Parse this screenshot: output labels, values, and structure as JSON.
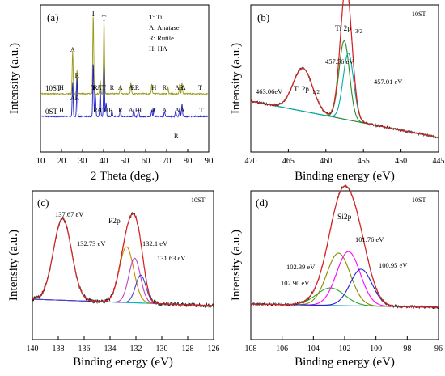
{
  "chart_data": [
    {
      "panel": "(a)",
      "type": "line",
      "xlabel": "2 Theta (deg.)",
      "ylabel": "Intensity (a.u.)",
      "xlim": [
        10,
        90
      ],
      "xticks": [
        10,
        20,
        30,
        40,
        50,
        60,
        70,
        80,
        90
      ],
      "legend": [
        "T: Ti",
        "A: Anatase",
        "R: Rutile",
        "H: HA"
      ],
      "series": [
        {
          "name": "10ST",
          "color": "#9a9a1a",
          "peaks": [
            [
              25.3,
              0.55
            ],
            [
              27.4,
              0.3
            ],
            [
              35.1,
              1.0
            ],
            [
              38.4,
              0.18
            ],
            [
              40.2,
              0.93
            ],
            [
              48.0,
              0.1
            ],
            [
              53.0,
              0.14
            ],
            [
              62.9,
              0.12
            ],
            [
              70.6,
              0.08
            ],
            [
              76.2,
              0.12
            ],
            [
              77.3,
              0.14
            ]
          ]
        },
        {
          "name": "0ST",
          "color": "#2222cc",
          "peaks": [
            [
              25.3,
              0.62
            ],
            [
              27.4,
              0.7
            ],
            [
              35.1,
              0.97
            ],
            [
              36.1,
              0.4
            ],
            [
              38.4,
              0.5
            ],
            [
              40.2,
              0.97
            ],
            [
              41.2,
              0.25
            ],
            [
              44.0,
              0.12
            ],
            [
              48.0,
              0.14
            ],
            [
              54.3,
              0.13
            ],
            [
              56.6,
              0.14
            ],
            [
              62.9,
              0.12
            ],
            [
              64.0,
              0.15
            ],
            [
              69.0,
              0.1
            ],
            [
              74.3,
              0.1
            ],
            [
              76.2,
              0.15
            ],
            [
              77.3,
              0.22
            ]
          ]
        }
      ],
      "labels_10st": [
        {
          "t": "A",
          "x": 25.3
        },
        {
          "t": "R",
          "x": 27.4
        },
        {
          "t": "T",
          "x": 35.1
        },
        {
          "t": "T",
          "x": 40.2
        },
        {
          "t": "H",
          "x": 20.0
        },
        {
          "t": "R",
          "x": 36.1
        },
        {
          "t": "T",
          "x": 38.4
        },
        {
          "t": "A",
          "x": 38.0
        },
        {
          "t": "R",
          "x": 44.0
        },
        {
          "t": "A",
          "x": 48.0
        },
        {
          "t": "R",
          "x": 54.0
        },
        {
          "t": "A",
          "x": 53.0
        },
        {
          "t": "R",
          "x": 56.0
        },
        {
          "t": "H",
          "x": 64.0
        },
        {
          "t": "R",
          "x": 69.0
        },
        {
          "t": "A",
          "x": 75.0
        },
        {
          "t": "A",
          "x": 78.0
        },
        {
          "t": "R",
          "x": 77.0
        },
        {
          "t": "T",
          "x": 86.0
        }
      ],
      "labels_0st": [
        {
          "t": "A",
          "x": 25.3
        },
        {
          "t": "R",
          "x": 27.4
        },
        {
          "t": "H",
          "x": 20.0
        },
        {
          "t": "R",
          "x": 36.1
        },
        {
          "t": "A",
          "x": 38.0
        },
        {
          "t": "T",
          "x": 38.6
        },
        {
          "t": "H",
          "x": 41.0
        },
        {
          "t": "R",
          "x": 43.5
        },
        {
          "t": "R",
          "x": 48.0
        },
        {
          "t": "A",
          "x": 53.0
        },
        {
          "t": "R",
          "x": 56.0
        },
        {
          "t": "H",
          "x": 57.0
        },
        {
          "t": "R",
          "x": 64.0
        },
        {
          "t": "A",
          "x": 69.0
        },
        {
          "t": "A",
          "x": 75.0
        },
        {
          "t": "A",
          "x": 77.5
        },
        {
          "t": "T",
          "x": 86.5
        },
        {
          "t": "R",
          "x": 74.5
        }
      ],
      "sample_labels": [
        "10ST",
        "0ST"
      ],
      "top_peak_labels": [
        "T",
        "T"
      ]
    },
    {
      "panel": "(b)",
      "type": "line",
      "xlabel": "Binding energy (eV)",
      "ylabel": "Intensity (a.u.)",
      "xlim": [
        470,
        445
      ],
      "xticks": [
        470,
        465,
        460,
        455,
        450,
        445
      ],
      "sample": "10ST",
      "title": "Ti 2p3/2",
      "peaks": [
        {
          "label": "463.06eV",
          "sublabel": "Ti 2p1/2",
          "center": 463.06,
          "height": 0.45,
          "width": 1.3,
          "color": "#2a8a2a"
        },
        {
          "label": "457.56 eV",
          "center": 457.56,
          "height": 0.82,
          "width": 0.7,
          "color": "#2a8a2a"
        },
        {
          "label": "457.01 eV",
          "center": 457.01,
          "height": 0.7,
          "width": 0.7,
          "color": "#00aaaa"
        }
      ]
    },
    {
      "panel": "(c)",
      "type": "line",
      "xlabel": "Binding energy (eV)",
      "ylabel": "Intensity (a.u.)",
      "xlim": [
        140,
        126
      ],
      "xticks": [
        140,
        138,
        136,
        134,
        132,
        130,
        128,
        126
      ],
      "sample": "10ST",
      "title": "P2p",
      "peaks": [
        {
          "label": "137.67 eV",
          "center": 137.67,
          "height": 0.88,
          "width": 0.7,
          "color": "#00bbbb"
        },
        {
          "label": "132.73 eV",
          "center": 132.73,
          "height": 0.6,
          "width": 0.55,
          "color": "#cc8800"
        },
        {
          "label": "132.1 eV",
          "center": 132.1,
          "height": 0.48,
          "width": 0.45,
          "color": "#bb44bb"
        },
        {
          "label": "131.63 eV",
          "center": 131.63,
          "height": 0.3,
          "width": 0.4,
          "color": "#4444cc"
        }
      ]
    },
    {
      "panel": "(d)",
      "type": "line",
      "xlabel": "Binding energy (eV)",
      "ylabel": "Intensity (a.u.)",
      "xlim": [
        108,
        96
      ],
      "xticks": [
        108,
        106,
        104,
        102,
        100,
        98,
        96
      ],
      "sample": "10ST",
      "title": "Si2p",
      "peaks": [
        {
          "label": "102.90 eV",
          "center": 102.9,
          "height": 0.2,
          "width": 0.9,
          "color": "#22aa22"
        },
        {
          "label": "102.39 eV",
          "center": 102.39,
          "height": 0.6,
          "width": 0.75,
          "color": "#888800"
        },
        {
          "label": "101.76 eV",
          "center": 101.76,
          "height": 0.62,
          "width": 0.75,
          "color": "#ff00ff"
        },
        {
          "label": "100.95 eV",
          "center": 100.95,
          "height": 0.42,
          "width": 0.7,
          "color": "#2222cc"
        }
      ]
    }
  ]
}
